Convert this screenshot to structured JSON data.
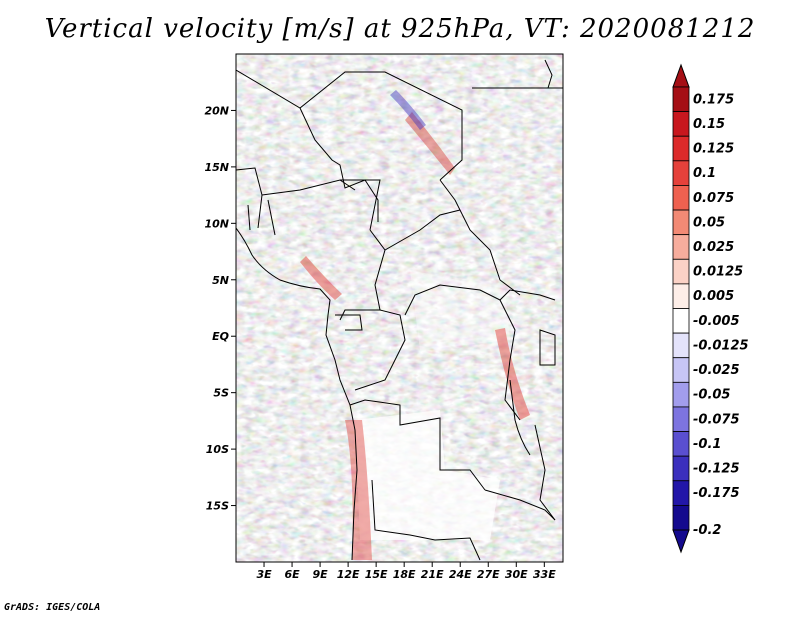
{
  "title": "Vertical velocity [m/s] at 925hPa, VT: 2020081212",
  "credit": "GrADS: IGES/COLA",
  "map": {
    "lon_range": [
      0,
      35
    ],
    "lat_range": [
      -20,
      25
    ],
    "lon_tick_labels": [
      "3E",
      "6E",
      "9E",
      "12E",
      "15E",
      "18E",
      "21E",
      "24E",
      "27E",
      "30E",
      "33E"
    ],
    "lon_ticks": [
      3,
      6,
      9,
      12,
      15,
      18,
      21,
      24,
      27,
      30,
      33
    ],
    "lat_tick_labels": [
      "20N",
      "15N",
      "10N",
      "5N",
      "EQ",
      "5S",
      "10S",
      "15S"
    ],
    "lat_ticks": [
      20,
      15,
      10,
      5,
      0,
      -5,
      -10,
      -15
    ]
  },
  "colorbar": {
    "labels": [
      "0.175",
      "0.15",
      "0.125",
      "0.1",
      "0.075",
      "0.05",
      "0.025",
      "0.0125",
      "0.005",
      "-0.005",
      "-0.0125",
      "-0.025",
      "-0.05",
      "-0.075",
      "-0.1",
      "-0.125",
      "-0.175",
      "-0.2"
    ],
    "colors": [
      "#a50f15",
      "#c8171e",
      "#dc2a2a",
      "#e5413b",
      "#ee6150",
      "#f28a75",
      "#f7ad9d",
      "#fbd2c6",
      "#fdeee8",
      "#ffffff",
      "#e4e3fb",
      "#c7c5f5",
      "#a29ded",
      "#7d74e0",
      "#5a4fd0",
      "#3b2fbd",
      "#2216a8",
      "#140a8e"
    ],
    "top_arrow_color": "#a50f15",
    "bottom_arrow_color": "#140a8e"
  }
}
